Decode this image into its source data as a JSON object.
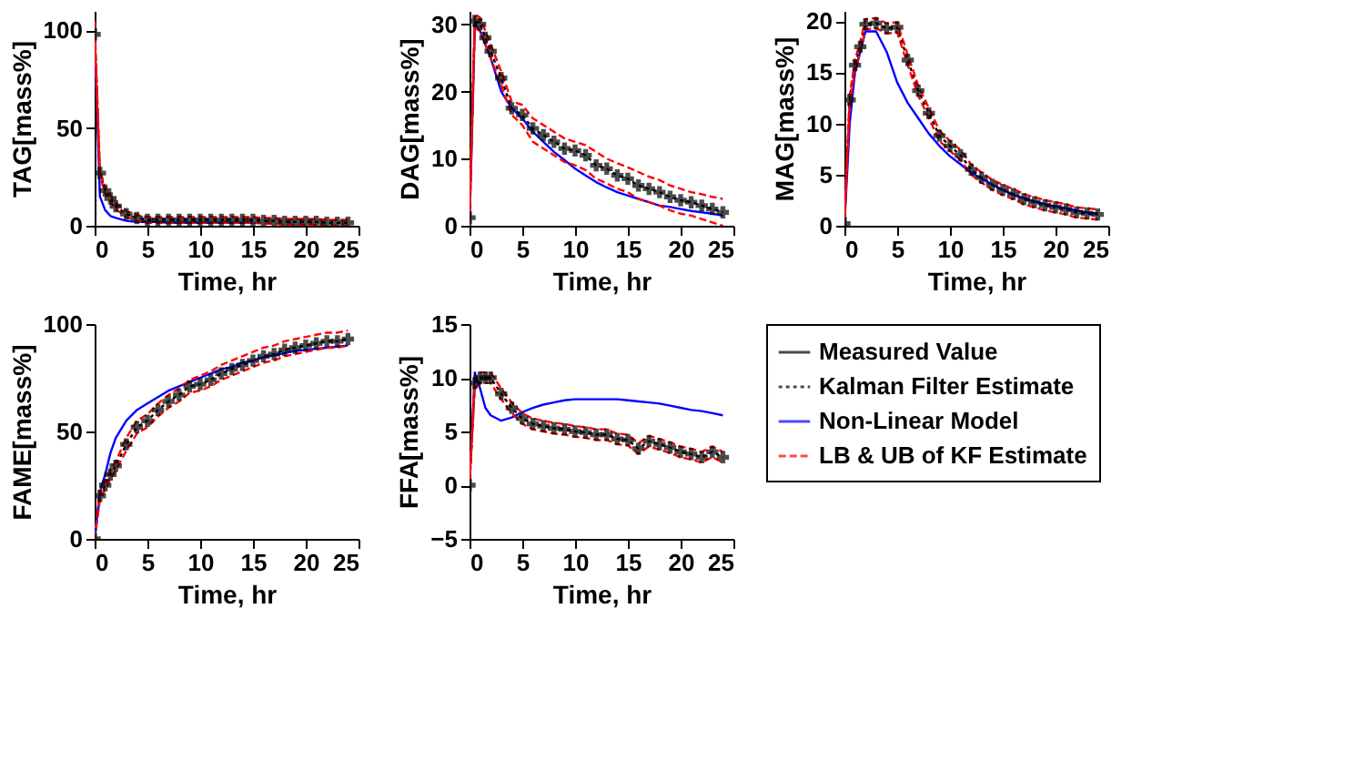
{
  "chart_data": [
    {
      "type": "line",
      "ylabel": "TAG[mass%]",
      "xlabel": "Time, hr",
      "x": [
        0,
        0.5,
        1,
        1.5,
        2,
        3,
        4,
        5,
        6,
        7,
        8,
        9,
        10,
        11,
        12,
        13,
        14,
        15,
        16,
        17,
        18,
        19,
        20,
        21,
        22,
        23,
        24
      ],
      "xlim": [
        0,
        25
      ],
      "xticks": [
        0,
        5,
        10,
        15,
        20,
        25
      ],
      "ylim": [
        0,
        110
      ],
      "yticks": [
        0,
        50,
        100
      ],
      "grid": false,
      "legend": false,
      "series": [
        {
          "type": "scatter",
          "marker": "cross",
          "color": "#000000",
          "values": [
            98,
            27,
            18,
            14,
            10,
            6,
            4,
            3,
            3,
            3,
            3,
            3,
            3,
            3,
            3,
            3,
            3,
            3,
            2.5,
            2.5,
            2,
            2,
            2,
            2,
            1.5,
            1.5,
            1.5
          ]
        },
        {
          "type": "line",
          "line_style": "dotted",
          "color": "#000000",
          "values": [
            98,
            27,
            18,
            14,
            10,
            6,
            4,
            3,
            3,
            3,
            3,
            3,
            3,
            3,
            3,
            3,
            3,
            3,
            2.5,
            2.5,
            2,
            2,
            2,
            2,
            1.5,
            1.5,
            1.5
          ]
        },
        {
          "type": "line",
          "line_style": "solid",
          "color": "#0000ff",
          "values": [
            98,
            15,
            8,
            5,
            4,
            2.5,
            2,
            2,
            2,
            1.5,
            1.5,
            1.5,
            1.5,
            1.5,
            1.5,
            1.5,
            1.5,
            1.5,
            null,
            null,
            null,
            null,
            null,
            null,
            null,
            null,
            null
          ]
        },
        {
          "type": "line",
          "line_style": "dashed",
          "color": "#ff0000",
          "values": [
            96,
            25.5,
            16.5,
            12.5,
            8.5,
            4.5,
            2.5,
            1.5,
            1.5,
            1.5,
            1.5,
            1.5,
            1.5,
            1.5,
            1.5,
            1.5,
            1.5,
            1.5,
            1,
            1,
            0.5,
            0.5,
            0.5,
            0.5,
            0,
            0,
            0
          ]
        },
        {
          "type": "line",
          "line_style": "dashed",
          "color": "#ff0000",
          "values": [
            105,
            28.5,
            19.5,
            15.5,
            11.5,
            7.5,
            5.5,
            4.5,
            4.5,
            4.5,
            4.5,
            4.5,
            4.5,
            4.5,
            4.5,
            4.5,
            4.5,
            4.5,
            4,
            4,
            3.5,
            3.5,
            3.5,
            3.5,
            3,
            3,
            3
          ]
        }
      ]
    },
    {
      "type": "line",
      "ylabel": "DAG[mass%]",
      "xlabel": "Time, hr",
      "x": [
        0,
        0.5,
        1,
        1.5,
        2,
        3,
        4,
        5,
        6,
        7,
        8,
        9,
        10,
        11,
        12,
        13,
        14,
        15,
        16,
        17,
        18,
        19,
        20,
        21,
        22,
        23,
        24
      ],
      "xlim": [
        0,
        25
      ],
      "xticks": [
        0,
        5,
        10,
        15,
        20,
        25
      ],
      "ylim": [
        0,
        32
      ],
      "yticks": [
        0,
        10,
        20,
        30
      ],
      "grid": false,
      "legend": false,
      "series": [
        {
          "type": "scatter",
          "marker": "cross",
          "color": "#000000",
          "values": [
            1.2,
            30.5,
            30,
            28,
            26,
            22,
            17.5,
            16.5,
            14.5,
            13.5,
            12.5,
            11.5,
            11.2,
            10.5,
            9,
            8.5,
            7.5,
            7,
            6,
            5.5,
            5,
            4.3,
            3.8,
            3.5,
            3,
            2.5,
            2
          ]
        },
        {
          "type": "line",
          "line_style": "dotted",
          "color": "#000000",
          "values": [
            1.2,
            30.5,
            30,
            28,
            26,
            22,
            17.5,
            16.5,
            14.5,
            13.5,
            12.5,
            11.5,
            11.2,
            10.5,
            9,
            8.5,
            7.5,
            7,
            6,
            5.5,
            5,
            4.3,
            3.8,
            3.5,
            3,
            2.5,
            2
          ]
        },
        {
          "type": "line",
          "line_style": "solid",
          "color": "#0000ff",
          "values": [
            0,
            30,
            29,
            27,
            25,
            20,
            17.5,
            16,
            14,
            12.5,
            11,
            9.8,
            8.5,
            7.5,
            6.5,
            5.7,
            5,
            4.5,
            4,
            3.5,
            3,
            2.8,
            2.5,
            2.2,
            2,
            1.8,
            1.5
          ]
        },
        {
          "type": "line",
          "line_style": "dashed",
          "color": "#ff0000",
          "values": [
            0,
            29.5,
            29,
            27,
            25,
            21,
            16.5,
            15,
            12.5,
            11.5,
            10.5,
            9.5,
            9,
            8.3,
            7,
            6.3,
            5.5,
            5,
            4,
            3.5,
            3,
            2.3,
            1.8,
            1.5,
            1,
            0.5,
            0
          ]
        },
        {
          "type": "line",
          "line_style": "dashed",
          "color": "#ff0000",
          "values": [
            2.5,
            31.5,
            31,
            29,
            27,
            23,
            18.5,
            18,
            16,
            15,
            14,
            13,
            12.5,
            12,
            11,
            10,
            9.3,
            8.7,
            8,
            7.3,
            6.8,
            6,
            5.5,
            5,
            4.7,
            4.3,
            4
          ]
        }
      ]
    },
    {
      "type": "line",
      "ylabel": "MAG[mass%]",
      "xlabel": "Time, hr",
      "x": [
        0,
        0.5,
        1,
        1.5,
        2,
        3,
        4,
        5,
        6,
        7,
        8,
        9,
        10,
        11,
        12,
        13,
        14,
        15,
        16,
        17,
        18,
        19,
        20,
        21,
        22,
        23,
        24
      ],
      "xlim": [
        0,
        25
      ],
      "xticks": [
        0,
        5,
        10,
        15,
        20,
        25
      ],
      "ylim": [
        0,
        21
      ],
      "yticks": [
        0,
        5,
        10,
        15,
        20
      ],
      "grid": false,
      "legend": false,
      "series": [
        {
          "type": "scatter",
          "marker": "cross",
          "color": "#000000",
          "values": [
            0.2,
            12.3,
            15.7,
            17.5,
            19.7,
            19.8,
            19.3,
            19.4,
            16.2,
            13.2,
            11,
            8.8,
            7.8,
            6.9,
            5.5,
            4.7,
            4,
            3.5,
            3.1,
            2.6,
            2.3,
            2,
            1.8,
            1.6,
            1.3,
            1.2,
            1.1
          ]
        },
        {
          "type": "line",
          "line_style": "dotted",
          "color": "#000000",
          "values": [
            0.2,
            12.3,
            15.7,
            17.5,
            19.7,
            19.8,
            19.3,
            19.4,
            16.2,
            13.2,
            11,
            8.8,
            7.8,
            6.9,
            5.5,
            4.7,
            4,
            3.5,
            3.1,
            2.6,
            2.3,
            2,
            1.8,
            1.6,
            1.3,
            1.2,
            1.1
          ]
        },
        {
          "type": "line",
          "line_style": "solid",
          "color": "#0000ff",
          "values": [
            0,
            10,
            15,
            17,
            19,
            19,
            17,
            14,
            12,
            10.5,
            9,
            7.8,
            6.8,
            6,
            5.2,
            4.6,
            4,
            3.5,
            3,
            2.7,
            2.4,
            2.1,
            1.9,
            1.7,
            1.5,
            1.3,
            1.2
          ]
        },
        {
          "type": "line",
          "line_style": "dashed",
          "color": "#ff0000",
          "values": [
            0,
            11.8,
            15.2,
            17,
            19.2,
            19.3,
            18.8,
            18.9,
            15.7,
            12.7,
            10.5,
            8.3,
            7.3,
            6.4,
            5,
            4.2,
            3.5,
            3,
            2.6,
            2.1,
            1.8,
            1.5,
            1.3,
            1.1,
            0.8,
            0.7,
            0.6
          ]
        },
        {
          "type": "line",
          "line_style": "dashed",
          "color": "#ff0000",
          "values": [
            0.7,
            12.8,
            16.2,
            18,
            20.2,
            20.3,
            19.8,
            19.9,
            16.7,
            13.7,
            11.5,
            9.3,
            8.3,
            7.4,
            6,
            5.2,
            4.5,
            4,
            3.6,
            3.1,
            2.8,
            2.5,
            2.3,
            2.1,
            1.8,
            1.7,
            1.6
          ]
        }
      ]
    },
    {
      "type": "line",
      "ylabel": "FAME[mass%]",
      "xlabel": "Time, hr",
      "x": [
        0,
        0.5,
        1,
        1.5,
        2,
        3,
        4,
        5,
        6,
        7,
        8,
        9,
        10,
        11,
        12,
        13,
        14,
        15,
        16,
        17,
        18,
        19,
        20,
        21,
        22,
        23,
        24
      ],
      "xlim": [
        0,
        25
      ],
      "xticks": [
        0,
        5,
        10,
        15,
        20,
        25
      ],
      "ylim": [
        0,
        100
      ],
      "yticks": [
        0,
        50,
        100
      ],
      "grid": false,
      "legend": false,
      "series": [
        {
          "type": "scatter",
          "marker": "cross",
          "color": "#000000",
          "values": [
            0,
            20,
            25,
            30,
            34,
            44,
            52,
            55,
            60,
            64,
            67,
            71,
            72,
            74,
            77,
            79,
            81,
            83,
            85,
            86,
            88,
            89,
            90,
            91,
            92,
            92,
            93
          ]
        },
        {
          "type": "line",
          "line_style": "dotted",
          "color": "#000000",
          "values": [
            0,
            20,
            25,
            30,
            34,
            44,
            52,
            55,
            60,
            64,
            67,
            71,
            72,
            74,
            77,
            79,
            81,
            83,
            85,
            86,
            88,
            89,
            90,
            91,
            92,
            92,
            93
          ]
        },
        {
          "type": "line",
          "line_style": "solid",
          "color": "#0000ff",
          "values": [
            0,
            22,
            30,
            40,
            47,
            55,
            60,
            63,
            66,
            69,
            71,
            73,
            75,
            77,
            79,
            80,
            82,
            83,
            84.5,
            85.5,
            86.5,
            87.5,
            88,
            88.5,
            89,
            89.5,
            90
          ]
        },
        {
          "type": "line",
          "line_style": "dashed",
          "color": "#ff0000",
          "values": [
            0,
            18,
            23,
            28,
            32,
            41,
            49,
            52,
            57,
            61,
            64,
            68,
            69,
            71,
            74,
            76,
            78,
            80,
            82,
            83,
            85,
            86,
            87,
            88,
            89,
            89,
            90
          ]
        },
        {
          "type": "line",
          "line_style": "dashed",
          "color": "#ff0000",
          "values": [
            0,
            22,
            27,
            32,
            36,
            47,
            55,
            58,
            63,
            67,
            70,
            74,
            76,
            78,
            81,
            83,
            85,
            87,
            89,
            90,
            92,
            93,
            94,
            95,
            96,
            96,
            97
          ]
        }
      ]
    },
    {
      "type": "line",
      "ylabel": "FFA[mass%]",
      "xlabel": "Time, hr",
      "x": [
        0,
        0.5,
        1,
        1.5,
        2,
        3,
        4,
        5,
        6,
        7,
        8,
        9,
        10,
        11,
        12,
        13,
        14,
        15,
        16,
        17,
        18,
        19,
        20,
        21,
        22,
        23,
        24
      ],
      "xlim": [
        0,
        25
      ],
      "xticks": [
        0,
        5,
        10,
        15,
        20,
        25
      ],
      "ylim": [
        -5,
        15
      ],
      "yticks": [
        -5,
        0,
        5,
        10,
        15
      ],
      "grid": false,
      "legend": "right",
      "series": [
        {
          "name": "Measured Value",
          "type": "scatter",
          "marker": "cross",
          "color": "#000000",
          "values": [
            0,
            9.5,
            10,
            10,
            10,
            8.5,
            7.2,
            6.2,
            5.7,
            5.5,
            5.3,
            5.2,
            5,
            4.9,
            4.7,
            4.7,
            4.3,
            4.2,
            3.4,
            4.1,
            3.8,
            3.5,
            3.1,
            2.9,
            2.6,
            3.1,
            2.6
          ]
        },
        {
          "name": "Kalman Filter Estimate",
          "type": "line",
          "line_style": "dotted",
          "color": "#000000",
          "values": [
            0,
            9.5,
            10,
            10,
            10,
            8.5,
            7.2,
            6.2,
            5.7,
            5.5,
            5.3,
            5.2,
            5,
            4.9,
            4.7,
            4.7,
            4.3,
            4.2,
            3.4,
            4.1,
            3.8,
            3.5,
            3.1,
            2.9,
            2.6,
            3.1,
            2.6
          ]
        },
        {
          "name": "Non-Linear Model",
          "type": "line",
          "line_style": "solid",
          "color": "#0000ff",
          "values": [
            0,
            10.5,
            9,
            7.2,
            6.5,
            6,
            6.3,
            6.8,
            7.2,
            7.5,
            7.7,
            7.9,
            8,
            8,
            8,
            8,
            8,
            7.9,
            7.8,
            7.7,
            7.6,
            7.4,
            7.2,
            7,
            6.9,
            6.7,
            6.5
          ]
        },
        {
          "name": "LB & UB of KF Estimate",
          "type": "line",
          "line_style": "dashed",
          "color": "#ff0000",
          "values": [
            0,
            9,
            9.5,
            9.5,
            9.5,
            8,
            6.7,
            5.7,
            5.2,
            5,
            4.8,
            4.7,
            4.5,
            4.4,
            4.2,
            4.2,
            3.8,
            3.7,
            2.9,
            3.6,
            3.3,
            3,
            2.6,
            2.4,
            2.1,
            2.6,
            2.1
          ]
        },
        {
          "type": "line",
          "line_style": "dashed",
          "color": "#ff0000",
          "values": [
            0.5,
            10,
            10.5,
            10.5,
            10.5,
            9,
            7.7,
            6.7,
            6.2,
            6,
            5.8,
            5.7,
            5.5,
            5.4,
            5.2,
            5.2,
            4.8,
            4.7,
            3.9,
            4.6,
            4.3,
            4,
            3.6,
            3.4,
            3.1,
            3.6,
            3.1
          ]
        }
      ]
    }
  ]
}
